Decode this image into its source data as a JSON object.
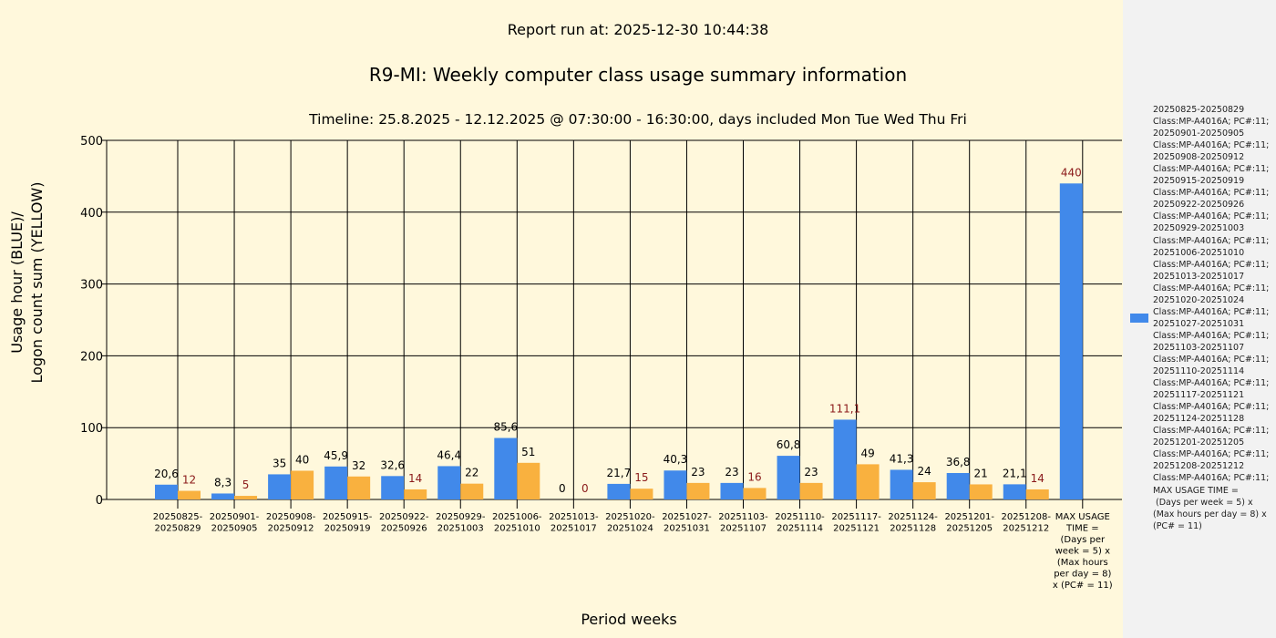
{
  "chart_data": {
    "type": "bar",
    "report_run": "Report run at: 2025-12-30 10:44:38",
    "title": "R9-MI: Weekly computer class usage summary information",
    "subtitle": "Timeline:  25.8.2025  - 12.12.2025  @  07:30:00 -  16:30:00, days included Mon Tue Wed Thu Fri",
    "xlabel": "Period weeks",
    "ylabel_line1": "Usage hour (BLUE)/",
    "ylabel_line2": "Logon count sum (YELLOW)",
    "ylim": [
      0,
      500
    ],
    "yticks": [
      "0",
      "100",
      "200",
      "300",
      "400",
      "500"
    ],
    "categories": [
      "20250825-\n20250829",
      "20250901-\n20250905",
      "20250908-\n20250912",
      "20250915-\n20250919",
      "20250922-\n20250926",
      "20250929-\n20251003",
      "20251006-\n20251010",
      "20251013-\n20251017",
      "20251020-\n20251024",
      "20251027-\n20251031",
      "20251103-\n20251107",
      "20251110-\n20251114",
      "20251117-\n20251121",
      "20251124-\n20251128",
      "20251201-\n20251205",
      "20251208-\n20251212",
      "MAX USAGE\nTIME =\n(Days per\nweek = 5) x\n(Max hours\nper day = 8)\nx (PC# = 11)"
    ],
    "series": [
      {
        "name": "Usage hour",
        "color": "#4189ea",
        "values": [
          20.6,
          8.3,
          35,
          45.9,
          32.6,
          46.4,
          85.6,
          0,
          21.7,
          40.3,
          23,
          60.8,
          111.1,
          41.3,
          36.8,
          21.1,
          440
        ],
        "labels": [
          "20,6",
          "8,3",
          "35",
          "45,9",
          "32,6",
          "46,4",
          "85,6",
          "0",
          "21,7",
          "40,3",
          "23",
          "60,8",
          "111,1",
          "41,3",
          "36,8",
          "21,1",
          "440"
        ]
      },
      {
        "name": "Logon count sum",
        "color": "#f9b13f",
        "values": [
          12,
          5,
          40,
          32,
          14,
          22,
          51,
          0,
          15,
          23,
          16,
          23,
          49,
          24,
          21,
          14,
          null
        ],
        "labels": [
          "12",
          "5",
          "40",
          "32",
          "14",
          "22",
          "51",
          "0",
          "15",
          "23",
          "16",
          "23",
          "49",
          "24",
          "21",
          "14",
          ""
        ]
      }
    ],
    "legend_text": "20250825-20250829\nClass:MP-A4016A; PC#:11;\n20250901-20250905\nClass:MP-A4016A; PC#:11;\n20250908-20250912\nClass:MP-A4016A; PC#:11;\n20250915-20250919\nClass:MP-A4016A; PC#:11;\n20250922-20250926\nClass:MP-A4016A; PC#:11;\n20250929-20251003\nClass:MP-A4016A; PC#:11;\n20251006-20251010\nClass:MP-A4016A; PC#:11;\n20251013-20251017\nClass:MP-A4016A; PC#:11;\n20251020-20251024\nClass:MP-A4016A; PC#:11;\n20251027-20251031\nClass:MP-A4016A; PC#:11;\n20251103-20251107\nClass:MP-A4016A; PC#:11;\n20251110-20251114\nClass:MP-A4016A; PC#:11;\n20251117-20251121\nClass:MP-A4016A; PC#:11;\n20251124-20251128\nClass:MP-A4016A; PC#:11;\n20251201-20251205\nClass:MP-A4016A; PC#:11;\n20251208-20251212\nClass:MP-A4016A; PC#:11;\nMAX USAGE TIME =\n (Days per week = 5) x (Max hours per day = 8) x (PC# = 11)",
    "legend_placement": "right"
  }
}
